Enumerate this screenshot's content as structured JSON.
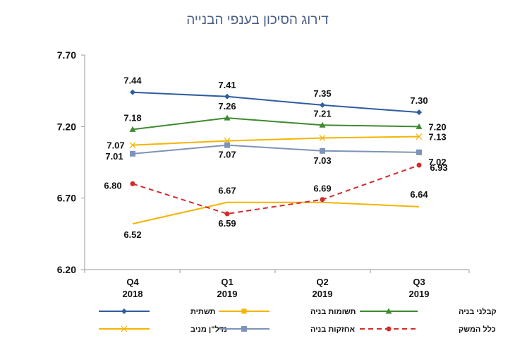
{
  "chart_data": {
    "type": "line",
    "title": "דירוג הסיכון בענפי הבנייה",
    "categories": [
      [
        "Q4",
        "2018"
      ],
      [
        "Q1",
        "2019"
      ],
      [
        "Q2",
        "2019"
      ],
      [
        "Q3",
        "2019"
      ]
    ],
    "ylim": [
      6.2,
      7.7
    ],
    "yticks": [
      "6.20",
      "6.70",
      "7.20",
      "7.70"
    ],
    "grid": false,
    "legend_position": "bottom",
    "series": [
      {
        "name": "תשתית",
        "values": [
          7.44,
          7.41,
          7.35,
          7.3
        ],
        "labels": [
          "7.44",
          "7.41",
          "7.35",
          "7.30"
        ],
        "color": "#2f5d9e",
        "marker": "diamond",
        "dash": "solid"
      },
      {
        "name": "קבלני בניה",
        "values": [
          7.18,
          7.26,
          7.21,
          7.2
        ],
        "labels": [
          "7.18",
          "7.26",
          "7.21",
          "7.20"
        ],
        "color": "#3e8a2f",
        "marker": "triangle",
        "dash": "solid"
      },
      {
        "name": "נדל\"ן מניב",
        "values": [
          7.07,
          7.1,
          7.12,
          7.13
        ],
        "labels": [
          "7.07",
          "",
          "",
          "7.13"
        ],
        "color": "#f5b400",
        "marker": "x",
        "dash": "solid"
      },
      {
        "name": "אחזקות בניה",
        "values": [
          7.01,
          7.07,
          7.03,
          7.02
        ],
        "labels": [
          "7.01",
          "7.07",
          "7.03",
          "7.02"
        ],
        "color": "#7d93b8",
        "marker": "square",
        "dash": "solid"
      },
      {
        "name": "תשומות בניה",
        "values": [
          6.52,
          6.67,
          6.67,
          6.64
        ],
        "labels": [
          "6.52",
          "6.67",
          "",
          "6.64"
        ],
        "color": "#f5b400",
        "marker": "none",
        "dash": "solid"
      },
      {
        "name": "כלל המשק",
        "values": [
          6.8,
          6.59,
          6.69,
          6.93
        ],
        "labels": [
          "6.80",
          "6.59",
          "6.69",
          "6.93"
        ],
        "color": "#d42a2a",
        "marker": "circle",
        "dash": "dashed"
      }
    ],
    "legend": [
      [
        "תשתית",
        "תשומות בניה",
        "קבלני בניה"
      ],
      [
        "נדל\"ן מניב",
        "אחזקות בניה",
        "כלל המשק"
      ]
    ]
  }
}
